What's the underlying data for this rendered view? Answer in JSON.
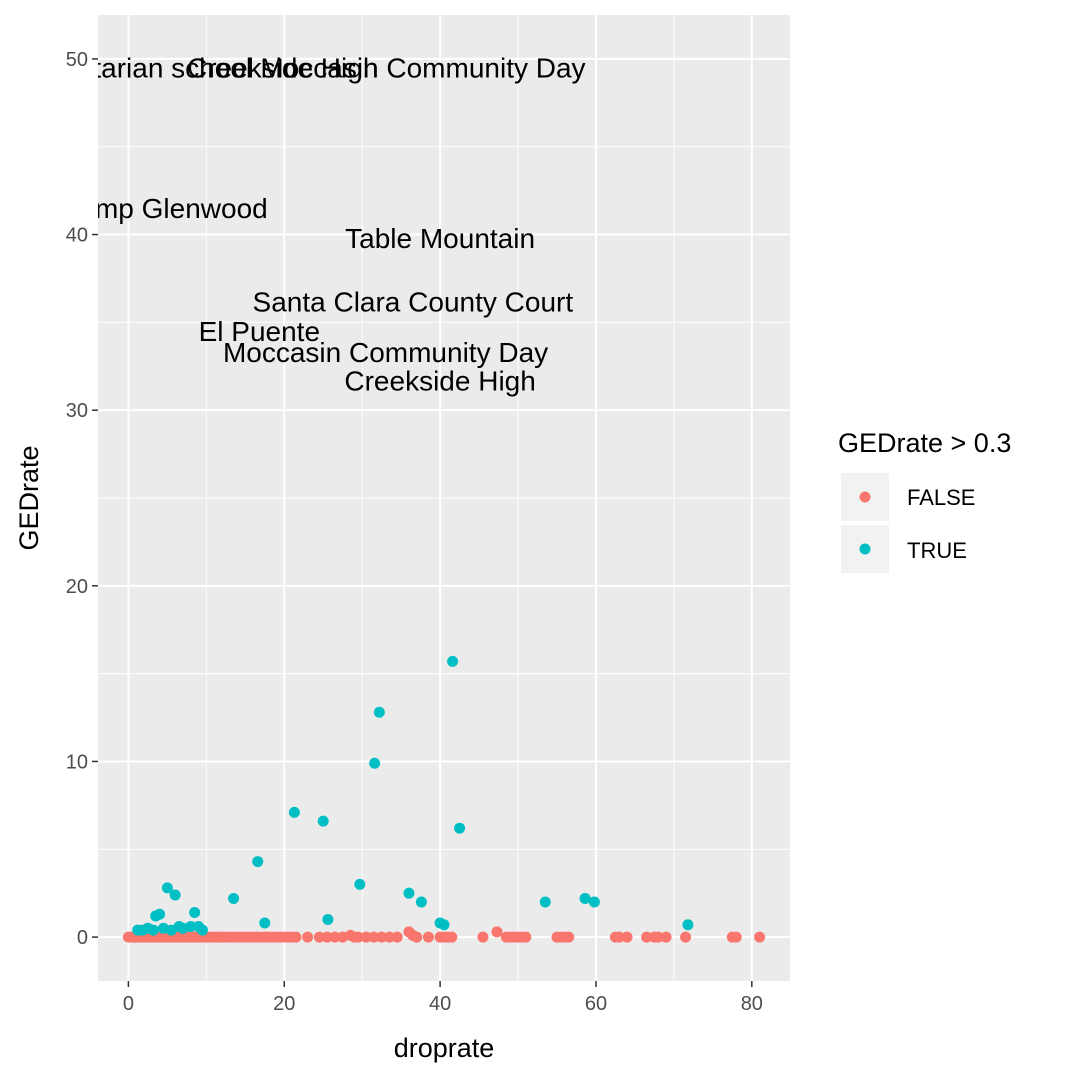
{
  "chart_data": {
    "type": "scatter",
    "title": "",
    "xlabel": "droprate",
    "ylabel": "GEDrate",
    "xlim": [
      -3.9,
      84.9
    ],
    "ylim": [
      -2.5,
      52.5
    ],
    "xticks": [
      0,
      20,
      40,
      60,
      80
    ],
    "yticks": [
      0,
      10,
      20,
      30,
      40,
      50
    ],
    "grid": true,
    "legend": {
      "title": "GEDrate > 0.3",
      "placement": "right",
      "entries": [
        {
          "label": "FALSE",
          "color": "#F8766D"
        },
        {
          "label": "TRUE",
          "color": "#00BFC4"
        }
      ]
    },
    "series": [
      {
        "name": "FALSE",
        "color": "#F8766D",
        "points": [
          [
            0.0,
            0.0
          ],
          [
            0.3,
            0.0
          ],
          [
            0.6,
            0.0
          ],
          [
            0.9,
            0.0
          ],
          [
            1.2,
            0.0
          ],
          [
            1.5,
            0.0
          ],
          [
            1.8,
            0.0
          ],
          [
            2.1,
            0.0
          ],
          [
            2.4,
            0.0
          ],
          [
            2.7,
            0.0
          ],
          [
            3.0,
            0.0
          ],
          [
            3.3,
            0.0
          ],
          [
            3.6,
            0.0
          ],
          [
            3.9,
            0.0
          ],
          [
            4.2,
            0.0
          ],
          [
            4.5,
            0.0
          ],
          [
            4.8,
            0.0
          ],
          [
            5.1,
            0.0
          ],
          [
            5.4,
            0.0
          ],
          [
            5.7,
            0.0
          ],
          [
            6.0,
            0.0
          ],
          [
            6.3,
            0.0
          ],
          [
            6.6,
            0.0
          ],
          [
            6.9,
            0.0
          ],
          [
            7.2,
            0.0
          ],
          [
            7.5,
            0.0
          ],
          [
            7.8,
            0.0
          ],
          [
            8.1,
            0.0
          ],
          [
            8.4,
            0.0
          ],
          [
            8.7,
            0.0
          ],
          [
            9.0,
            0.0
          ],
          [
            9.4,
            0.0
          ],
          [
            9.8,
            0.0
          ],
          [
            10.2,
            0.0
          ],
          [
            10.6,
            0.0
          ],
          [
            11.0,
            0.0
          ],
          [
            11.4,
            0.0
          ],
          [
            11.8,
            0.0
          ],
          [
            12.2,
            0.0
          ],
          [
            12.6,
            0.0
          ],
          [
            13.0,
            0.0
          ],
          [
            13.5,
            0.0
          ],
          [
            14.0,
            0.0
          ],
          [
            14.5,
            0.0
          ],
          [
            15.0,
            0.0
          ],
          [
            15.5,
            0.0
          ],
          [
            16.0,
            0.0
          ],
          [
            16.5,
            0.0
          ],
          [
            17.0,
            0.0
          ],
          [
            17.5,
            0.0
          ],
          [
            18.0,
            0.0
          ],
          [
            18.5,
            0.0
          ],
          [
            19.0,
            0.0
          ],
          [
            19.5,
            0.0
          ],
          [
            20.0,
            0.0
          ],
          [
            20.5,
            0.0
          ],
          [
            21.0,
            0.0
          ],
          [
            21.5,
            0.0
          ],
          [
            23.0,
            0.0
          ],
          [
            24.5,
            0.0
          ],
          [
            25.5,
            0.0
          ],
          [
            26.5,
            0.0
          ],
          [
            27.5,
            0.0
          ],
          [
            28.5,
            0.1
          ],
          [
            29.0,
            0.0
          ],
          [
            29.5,
            0.0
          ],
          [
            30.5,
            0.0
          ],
          [
            31.5,
            0.0
          ],
          [
            32.5,
            0.0
          ],
          [
            33.5,
            0.0
          ],
          [
            34.5,
            0.0
          ],
          [
            36.0,
            0.3
          ],
          [
            36.5,
            0.1
          ],
          [
            37.0,
            0.0
          ],
          [
            38.5,
            0.0
          ],
          [
            40.0,
            0.0
          ],
          [
            40.5,
            0.0
          ],
          [
            41.0,
            0.0
          ],
          [
            41.5,
            0.0
          ],
          [
            45.5,
            0.0
          ],
          [
            47.3,
            0.3
          ],
          [
            48.5,
            0.0
          ],
          [
            49.0,
            0.0
          ],
          [
            49.5,
            0.0
          ],
          [
            50.0,
            0.0
          ],
          [
            50.5,
            0.0
          ],
          [
            51.0,
            0.0
          ],
          [
            55.0,
            0.0
          ],
          [
            55.5,
            0.0
          ],
          [
            56.0,
            0.0
          ],
          [
            56.5,
            0.0
          ],
          [
            62.5,
            0.0
          ],
          [
            63.0,
            0.0
          ],
          [
            64.0,
            0.0
          ],
          [
            66.5,
            0.0
          ],
          [
            67.5,
            0.0
          ],
          [
            68.0,
            0.0
          ],
          [
            69.0,
            0.0
          ],
          [
            71.5,
            0.0
          ],
          [
            77.5,
            0.0
          ],
          [
            78.0,
            0.0
          ],
          [
            81.0,
            0.0
          ]
        ]
      },
      {
        "name": "TRUE",
        "color": "#00BFC4",
        "points": [
          [
            1.2,
            0.4
          ],
          [
            1.8,
            0.4
          ],
          [
            2.5,
            0.5
          ],
          [
            3.2,
            0.4
          ],
          [
            3.5,
            1.2
          ],
          [
            4.0,
            1.3
          ],
          [
            4.5,
            0.5
          ],
          [
            5.0,
            2.8
          ],
          [
            5.5,
            0.4
          ],
          [
            6.0,
            2.4
          ],
          [
            6.5,
            0.6
          ],
          [
            7.0,
            0.5
          ],
          [
            8.0,
            0.6
          ],
          [
            8.5,
            1.4
          ],
          [
            9.0,
            0.6
          ],
          [
            9.5,
            0.4
          ],
          [
            13.5,
            2.2
          ],
          [
            16.6,
            4.3
          ],
          [
            17.5,
            0.8
          ],
          [
            21.3,
            7.1
          ],
          [
            25.0,
            6.6
          ],
          [
            25.6,
            1.0
          ],
          [
            29.7,
            3.0
          ],
          [
            31.6,
            9.9
          ],
          [
            32.2,
            12.8
          ],
          [
            36.0,
            2.5
          ],
          [
            37.6,
            2.0
          ],
          [
            40.0,
            0.8
          ],
          [
            40.5,
            0.7
          ],
          [
            41.6,
            15.7
          ],
          [
            42.5,
            6.2
          ],
          [
            53.5,
            2.0
          ],
          [
            58.6,
            2.2
          ],
          [
            59.8,
            2.0
          ],
          [
            71.8,
            0.7
          ]
        ]
      }
    ],
    "annotations": [
      {
        "text": "Non-sectarian school",
        "x": -1.0,
        "y": 49.5
      },
      {
        "text": "Creekside High",
        "x": 19.8,
        "y": 49.5
      },
      {
        "text": "Moccasin Community Day",
        "x": 37.8,
        "y": 49.5
      },
      {
        "text": "Camp Glenwood",
        "x": 4.5,
        "y": 41.5
      },
      {
        "text": "Table Mountain",
        "x": 40.0,
        "y": 39.8
      },
      {
        "text": "Santa Clara County Court",
        "x": 36.5,
        "y": 36.2
      },
      {
        "text": "El Puente",
        "x": 16.8,
        "y": 34.5
      },
      {
        "text": "Moccasin Community Day",
        "x": 33.0,
        "y": 33.3
      },
      {
        "text": "Creekside High",
        "x": 40.0,
        "y": 31.7
      }
    ]
  }
}
